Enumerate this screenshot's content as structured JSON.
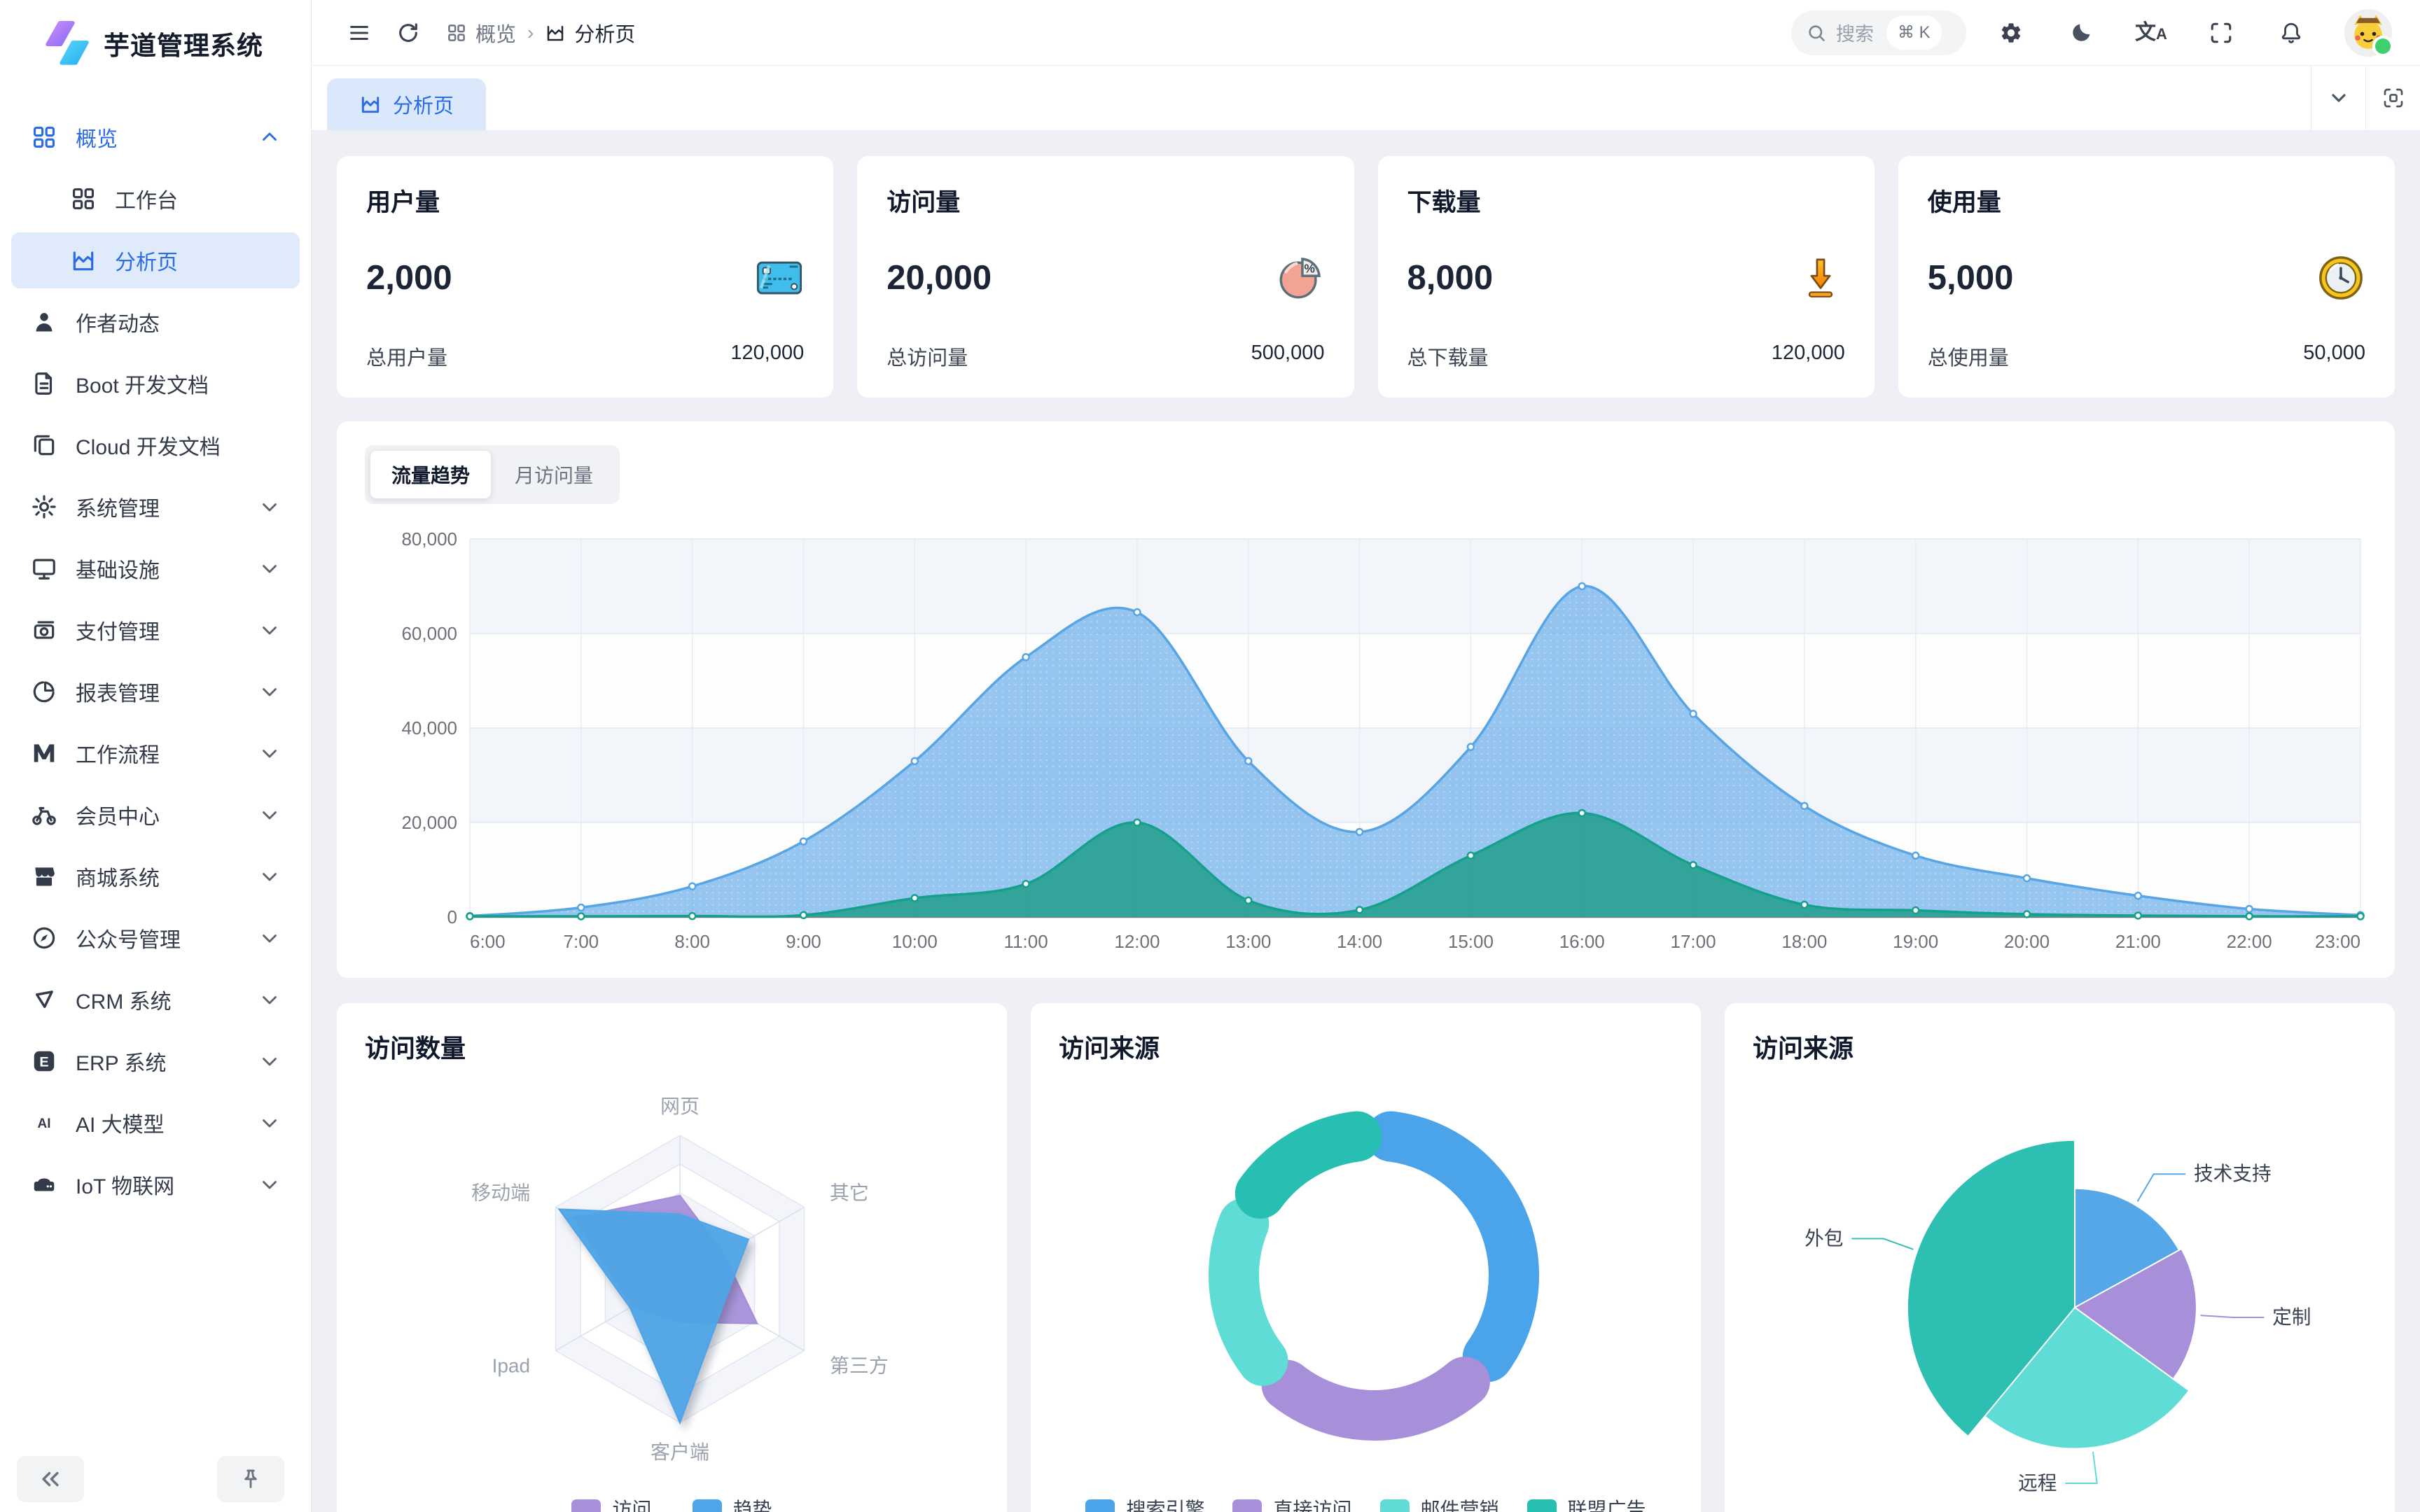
{
  "app": {
    "title": "芋道管理系统"
  },
  "navbar": {
    "breadcrumb": [
      {
        "icon": "grid",
        "label": "概览"
      },
      {
        "icon": "chart",
        "label": "分析页"
      }
    ],
    "search": {
      "placeholder": "搜索",
      "shortcut": "⌘ K"
    }
  },
  "tabbar": {
    "tabs": [
      {
        "label": "分析页",
        "icon": "chart",
        "active": true
      }
    ]
  },
  "sidebar": {
    "items": [
      {
        "label": "概览",
        "icon": "grid",
        "primary": true,
        "chevron": "up",
        "children": [
          {
            "label": "工作台",
            "icon": "grid"
          },
          {
            "label": "分析页",
            "icon": "chart",
            "active": true
          }
        ]
      },
      {
        "label": "作者动态",
        "icon": "person"
      },
      {
        "label": "Boot 开发文档",
        "icon": "document"
      },
      {
        "label": "Cloud 开发文档",
        "icon": "copy"
      },
      {
        "label": "系统管理",
        "icon": "gear",
        "chevron": "down"
      },
      {
        "label": "基础设施",
        "icon": "monitor",
        "chevron": "down"
      },
      {
        "label": "支付管理",
        "icon": "payment",
        "chevron": "down"
      },
      {
        "label": "报表管理",
        "icon": "pie",
        "chevron": "down"
      },
      {
        "label": "工作流程",
        "icon": "workflow",
        "chevron": "down"
      },
      {
        "label": "会员中心",
        "icon": "bicycle",
        "chevron": "down"
      },
      {
        "label": "商城系统",
        "icon": "shop",
        "chevron": "down"
      },
      {
        "label": "公众号管理",
        "icon": "compass",
        "chevron": "down"
      },
      {
        "label": "CRM 系统",
        "icon": "crm",
        "chevron": "down"
      },
      {
        "label": "ERP 系统",
        "icon": "erp",
        "chevron": "down"
      },
      {
        "label": "AI 大模型",
        "icon": "ai",
        "chevron": "down"
      },
      {
        "label": "IoT 物联网",
        "icon": "iot",
        "chevron": "down"
      }
    ]
  },
  "stat_cards": [
    {
      "title": "用户量",
      "value": "2,000",
      "total_label": "总用户量",
      "total_value": "120,000",
      "icon": "credit-card"
    },
    {
      "title": "访问量",
      "value": "20,000",
      "total_label": "总访问量",
      "total_value": "500,000",
      "icon": "pie-percent"
    },
    {
      "title": "下载量",
      "value": "8,000",
      "total_label": "总下载量",
      "total_value": "120,000",
      "icon": "download"
    },
    {
      "title": "使用量",
      "value": "5,000",
      "total_label": "总使用量",
      "total_value": "50,000",
      "icon": "clock"
    }
  ],
  "trend_card": {
    "tabs": [
      "流量趋势",
      "月访问量"
    ],
    "active_tab": "流量趋势"
  },
  "chart_data": [
    {
      "id": "traffic-trend",
      "type": "area",
      "x": [
        "6:00",
        "7:00",
        "8:00",
        "9:00",
        "10:00",
        "11:00",
        "12:00",
        "13:00",
        "14:00",
        "15:00",
        "16:00",
        "17:00",
        "18:00",
        "19:00",
        "20:00",
        "21:00",
        "22:00",
        "23:00"
      ],
      "series": [
        {
          "name": "series-blue",
          "color": "#57A5E4",
          "fill": "rgba(110,176,233,0.72)",
          "values": [
            200,
            2000,
            6500,
            16000,
            33000,
            55000,
            64500,
            33000,
            18000,
            36000,
            70000,
            43000,
            23500,
            13000,
            8200,
            4500,
            1700,
            400
          ]
        },
        {
          "name": "series-green",
          "color": "#14A08D",
          "fill": "rgba(41,161,145,0.92)",
          "values": [
            0,
            100,
            200,
            400,
            4000,
            7000,
            20000,
            3500,
            1500,
            13000,
            22000,
            11000,
            2600,
            1400,
            600,
            300,
            150,
            100
          ]
        }
      ],
      "ylim": [
        0,
        80000
      ],
      "yticks": [
        0,
        20000,
        40000,
        60000,
        80000
      ],
      "grid": true,
      "legend_position": "none"
    },
    {
      "id": "visit-count-radar",
      "type": "radar",
      "title": "访问数量",
      "indicators": [
        "网页",
        "其它",
        "第三方",
        "客户端",
        "Ipad",
        "移动端"
      ],
      "max": 100,
      "series": [
        {
          "name": "访问",
          "color": "#A78FD9",
          "values": [
            58,
            35,
            62,
            30,
            38,
            85
          ]
        },
        {
          "name": "趋势",
          "color": "#4FA5E7",
          "values": [
            45,
            55,
            35,
            100,
            40,
            97
          ]
        }
      ],
      "legend_position": "bottom"
    },
    {
      "id": "visit-source-donut",
      "type": "pie",
      "title": "访问来源",
      "shape": "donut",
      "items": [
        {
          "label": "搜索引擎",
          "value": 1048,
          "color": "#4BA4EA"
        },
        {
          "label": "直接访问",
          "value": 735,
          "color": "#A78FD9"
        },
        {
          "label": "邮件营销",
          "value": 580,
          "color": "#5FDCD6"
        },
        {
          "label": "联盟广告",
          "value": 484,
          "color": "#27BFB2"
        }
      ],
      "legend_position": "bottom"
    },
    {
      "id": "visit-source-rose",
      "type": "pie",
      "title": "访问来源",
      "shape": "rose",
      "items": [
        {
          "label": "技术支持",
          "value": 17,
          "color": "#55A7E8",
          "label_side": "right"
        },
        {
          "label": "定制",
          "value": 18,
          "color": "#A78FD9",
          "label_side": "right"
        },
        {
          "label": "远程",
          "value": 26,
          "color": "#5FDCD6",
          "label_side": "left"
        },
        {
          "label": "外包",
          "value": 39,
          "color": "#2CBFB2",
          "label_side": "left"
        }
      ],
      "legend_position": "none"
    }
  ],
  "colors": {
    "primary": "#2b6ce5",
    "active_bg": "#dfeafb",
    "content_bg": "#eef0f5"
  }
}
